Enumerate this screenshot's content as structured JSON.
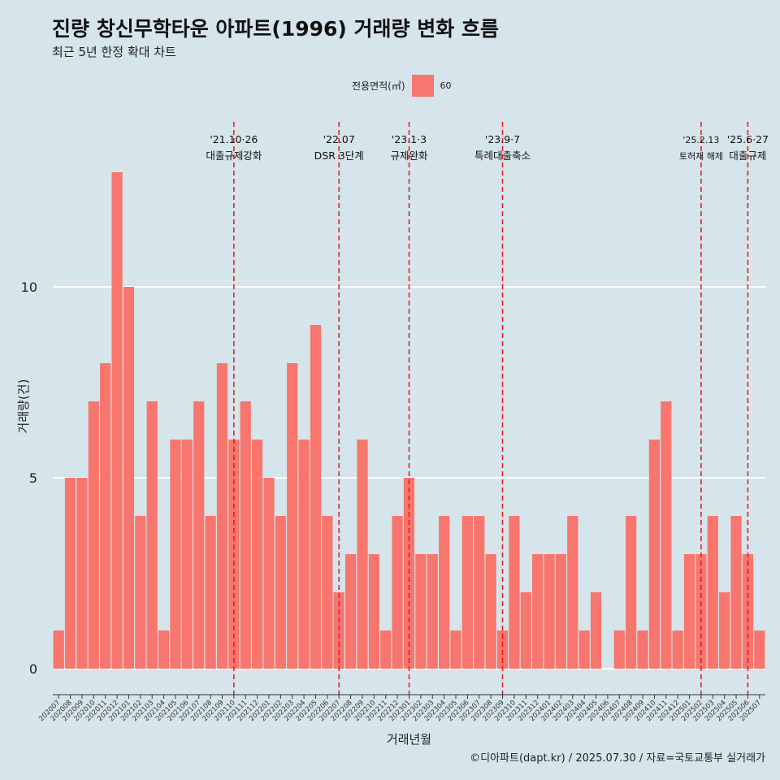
{
  "title": "진량 창신무학타운 아파트(1996) 거래량 변화 흐름",
  "subtitle": "최근 5년 한정 확대 차트",
  "legend": {
    "title": "전용면적(㎡)",
    "items": [
      {
        "label": "60",
        "color": "#F8766D"
      }
    ]
  },
  "caption": "©디아파트(dapt.kr) / 2025.07.30 / 자료=국토교통부 실거래가",
  "colors": {
    "background": "#d6e4eb",
    "bar": "#F8766D",
    "vline": "#e8131a",
    "grid": "#ffffff"
  },
  "chart_data": {
    "type": "bar",
    "xlabel": "거래년월",
    "ylabel": "거래량(건)",
    "ylim": [
      0,
      13
    ],
    "yticks": [
      0,
      5,
      10
    ],
    "grid": true,
    "legend_position": "top",
    "categories": [
      "202007",
      "202008",
      "202009",
      "202010",
      "202011",
      "202012",
      "202101",
      "202102",
      "202103",
      "202104",
      "202105",
      "202106",
      "202107",
      "202108",
      "202109",
      "202110",
      "202111",
      "202112",
      "202201",
      "202202",
      "202203",
      "202204",
      "202205",
      "202206",
      "202207",
      "202208",
      "202209",
      "202210",
      "202211",
      "202212",
      "202301",
      "202302",
      "202303",
      "202304",
      "202305",
      "202306",
      "202307",
      "202308",
      "202309",
      "202310",
      "202311",
      "202312",
      "202401",
      "202402",
      "202403",
      "202404",
      "202405",
      "202406",
      "202407",
      "202408",
      "202409",
      "202410",
      "202411",
      "202412",
      "202501",
      "202502",
      "202503",
      "202504",
      "202505",
      "202506",
      "202507"
    ],
    "series": [
      {
        "name": "60",
        "values": [
          1,
          5,
          5,
          7,
          8,
          13,
          10,
          4,
          7,
          1,
          6,
          6,
          7,
          4,
          8,
          6,
          7,
          6,
          5,
          4,
          8,
          6,
          9,
          4,
          2,
          3,
          6,
          3,
          1,
          4,
          5,
          3,
          3,
          4,
          1,
          4,
          4,
          3,
          1,
          4,
          2,
          3,
          3,
          3,
          4,
          1,
          2,
          0,
          1,
          4,
          1,
          6,
          7,
          1,
          3,
          3,
          4,
          2,
          4,
          3,
          1
        ]
      }
    ],
    "annotations": [
      {
        "category": "202110",
        "line1": "'21.10·26",
        "line2": "대출규제강화"
      },
      {
        "category": "202207",
        "line1": "'22.07",
        "line2": "DSR 3단계"
      },
      {
        "category": "202301",
        "line1": "'23.1·3",
        "line2": "규제완화"
      },
      {
        "category": "202309",
        "line1": "'23.9·7",
        "line2": "특례대출축소"
      },
      {
        "category": "202502",
        "line1": "'25.2.13",
        "line2": "토허제 해제"
      },
      {
        "category": "202506",
        "line1": "'25.6·27",
        "line2": "대출규제"
      }
    ]
  }
}
